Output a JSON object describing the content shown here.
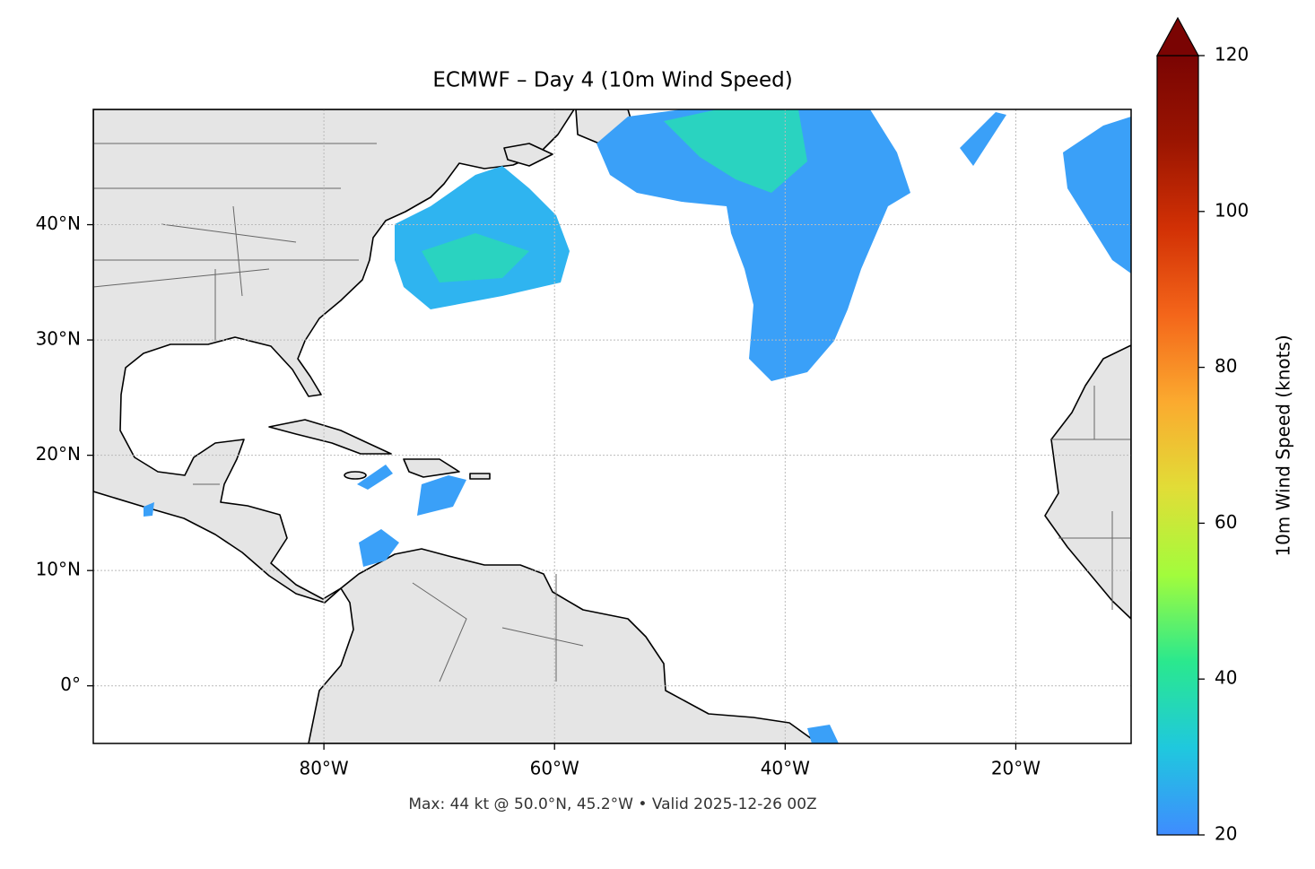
{
  "chart_data": {
    "type": "map",
    "title": "ECMWF – Day 4 (10m Wind Speed)",
    "footer": "Max: 44 kt @ 50.0°N, 45.2°W • Valid 2025-12-26 00Z",
    "xlim": [
      -100,
      -10
    ],
    "ylim": [
      -5,
      50
    ],
    "xticks": [
      {
        "value": -80,
        "label": "80°W"
      },
      {
        "value": -60,
        "label": "60°W"
      },
      {
        "value": -40,
        "label": "40°W"
      },
      {
        "value": -20,
        "label": "20°W"
      }
    ],
    "yticks": [
      {
        "value": 0,
        "label": "0°"
      },
      {
        "value": 10,
        "label": "10°N"
      },
      {
        "value": 20,
        "label": "20°N"
      },
      {
        "value": 30,
        "label": "30°N"
      },
      {
        "value": 40,
        "label": "40°N"
      }
    ],
    "grid": true,
    "colorbar": {
      "label": "10m Wind Speed (knots)",
      "lim": [
        20,
        120
      ],
      "ticks": [
        20,
        40,
        60,
        80,
        100,
        120
      ],
      "colors": [
        "#3f8cff",
        "#1fc8de",
        "#2ae88e",
        "#a2fc3c",
        "#e1dd37",
        "#fbaa2f",
        "#f4661a",
        "#d23105",
        "#9b1501",
        "#7a0403"
      ]
    }
  }
}
